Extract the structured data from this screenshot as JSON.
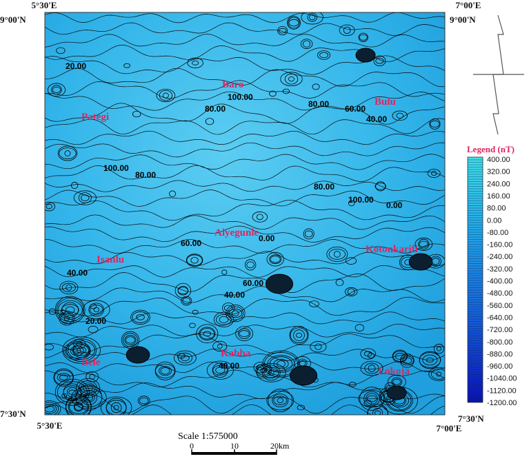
{
  "coordinates": {
    "top_left_lon": "5°30'E",
    "top_right_lon": "7°00'E",
    "top_left_lat": "9°00'N",
    "top_right_lat": "9°00'N",
    "bottom_left_lat": "7°30'N",
    "bottom_right_lat": "7°30'N",
    "bottom_left_lon": "5°30'E",
    "bottom_right_lon": "7°00'E"
  },
  "towns": [
    "Baro",
    "Bulu",
    "Pategi",
    "Isanlu",
    "Aiyegunle",
    "Kotonkarifi",
    "Bele",
    "Kabba",
    "Lokoja"
  ],
  "contour_labels": [
    "20.00",
    "80.00",
    "100.00",
    "80.00",
    "60.00",
    "40.00",
    "100.00",
    "80.00",
    "80.00",
    "100.00",
    "0.00",
    "60.00",
    "0.00",
    "40.00",
    "60.00",
    "40.00",
    "20.00",
    "40.00"
  ],
  "legend": {
    "title": "Legend (nT)",
    "labels": [
      "400.00",
      "320.00",
      "240.00",
      "160.00",
      "80.00",
      "0.00",
      "-80.00",
      "-160.00",
      "-240.00",
      "-320.00",
      "-400.00",
      "-480.00",
      "-560.00",
      "-640.00",
      "-720.00",
      "-800.00",
      "-880.00",
      "-960.00",
      "-1040.00",
      "-1120.00",
      "-1200.00"
    ]
  },
  "scale": {
    "title": "Scale 1:575000",
    "labels": [
      "0",
      "10",
      "20km"
    ]
  }
}
